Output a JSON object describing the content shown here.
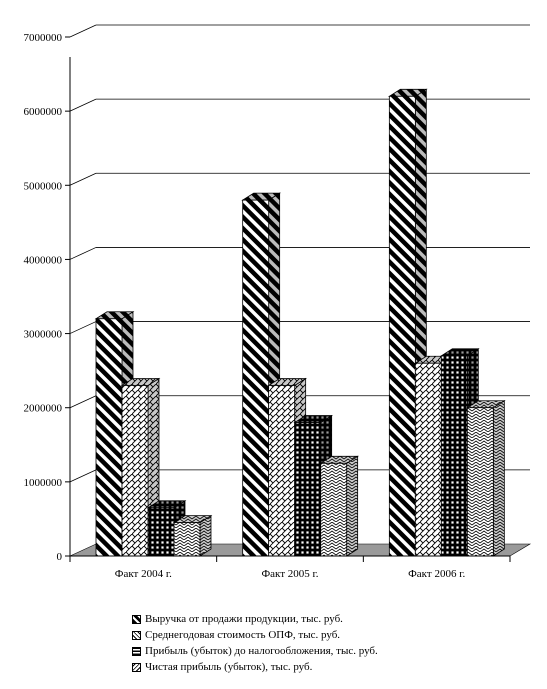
{
  "chart_data": {
    "type": "bar",
    "categories": [
      "Факт 2004 г.",
      "Факт 2005 г.",
      "Факт 2006 г."
    ],
    "series": [
      {
        "name": "Выручка от продажи продукции, тыс. руб.",
        "values": [
          3200000,
          4800000,
          6200000
        ]
      },
      {
        "name": "Среднегодовая стоимость ОПФ, тыс. руб.",
        "values": [
          2300000,
          2300000,
          2600000
        ]
      },
      {
        "name": "Прибыль (убыток) до налогообложения, тыс. руб.",
        "values": [
          650000,
          1800000,
          2700000
        ]
      },
      {
        "name": "Чистая прибыль (убыток), тыс. руб.",
        "values": [
          450000,
          1250000,
          2000000
        ]
      }
    ],
    "ylim": [
      0,
      7000000
    ],
    "yticks": [
      "0",
      "1000000",
      "2000000",
      "3000000",
      "4000000",
      "5000000",
      "6000000",
      "7000000"
    ],
    "grid": true,
    "legend_position": "bottom",
    "three_d": true
  }
}
